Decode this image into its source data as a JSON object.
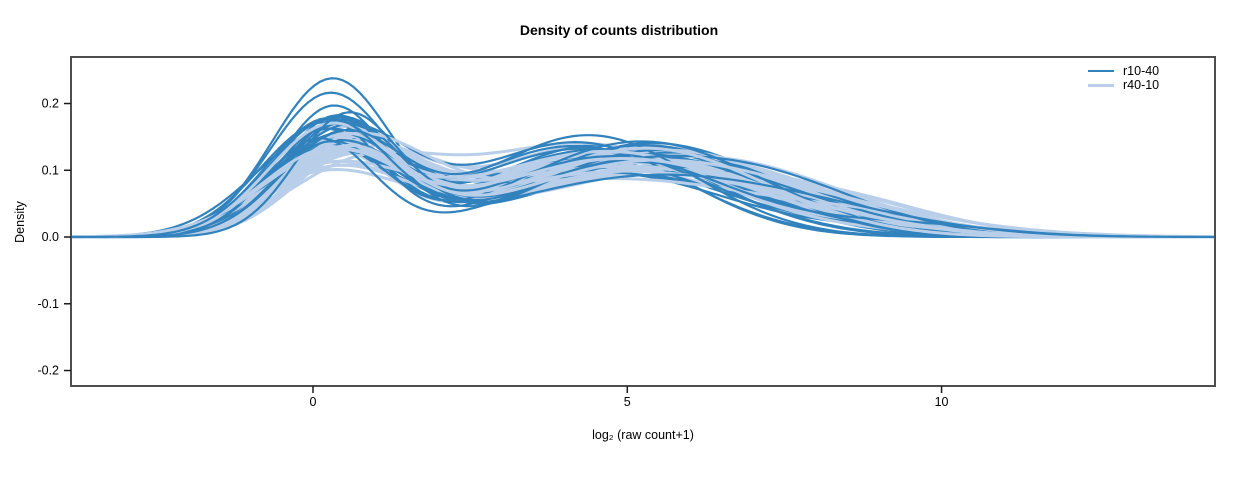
{
  "chart_data": {
    "type": "line",
    "title": "Density of counts distribution",
    "xlabel": "log₂ (raw count+1)",
    "ylabel": "Density",
    "xlim": [
      -3.85,
      14.35
    ],
    "ylim": [
      -0.2232,
      0.2697
    ],
    "xticks": [
      0,
      5,
      10
    ],
    "xtick_labels": [
      "0",
      "5",
      "10"
    ],
    "yticks": [
      -0.2,
      -0.1,
      0.0,
      0.1,
      0.2
    ],
    "ytick_labels": [
      "-0.2",
      "-0.1",
      "0.0",
      "0.1",
      "0.2"
    ],
    "grid": false,
    "legend_position": "top-right-inside",
    "border_color": "#4e4e4e",
    "tick_color": "#1a1a1a",
    "description": "Approximately 60 overlapping per-sample kernel density curves of log2(raw count+1); each curve has a sharp peak near x=0.3 (density 0.10-0.24), a dip near x=1.8, a broad bump near x=4-6 (density 0.09-0.16), and a long right tail reaching ~0 by x=10-13.",
    "series": [
      {
        "name": "r10-40",
        "color": "#3182bd",
        "line_width": 2.2,
        "n_curves": 30,
        "seed": 42,
        "mixture": {
          "w1": [
            0.3,
            0.42
          ],
          "mu1": [
            0.1,
            0.55
          ],
          "s1": [
            0.82,
            1.1
          ],
          "mu2": [
            4.1,
            5.7
          ],
          "s2": [
            1.5,
            2.1
          ],
          "d": [
            0.5,
            1.3
          ],
          "tail_prob": 0.5,
          "w3": [
            0.02,
            0.07
          ],
          "mu3": [
            7.5,
            9.8
          ],
          "s3": [
            1.0,
            1.8
          ]
        },
        "overrides": [
          {
            "i": 0,
            "w1": 0.56,
            "s1": 0.95,
            "mu1": 0.3
          },
          {
            "i": 1,
            "w1": 0.5,
            "s1": 0.95,
            "mu1": 0.25
          }
        ]
      },
      {
        "name": "r40-10",
        "color": "#b9cfe9",
        "line_width": 3,
        "n_curves": 30,
        "seed": 7,
        "mixture": {
          "w1": [
            0.28,
            0.38
          ],
          "mu1": [
            0.2,
            0.8
          ],
          "s1": [
            0.95,
            1.2
          ],
          "mu2": [
            4.2,
            5.9
          ],
          "s2": [
            1.6,
            2.2
          ],
          "d": [
            0.5,
            1.4
          ],
          "tail_prob": 0.4,
          "w3": [
            0.02,
            0.06
          ],
          "mu3": [
            7.2,
            9.5
          ],
          "s3": [
            1.2,
            2.0
          ]
        },
        "overrides": []
      }
    ]
  },
  "legend": {
    "items": [
      {
        "label": "r10-40",
        "color": "#3182bd"
      },
      {
        "label": "r40-10",
        "color": "#b9cfe9"
      }
    ]
  }
}
